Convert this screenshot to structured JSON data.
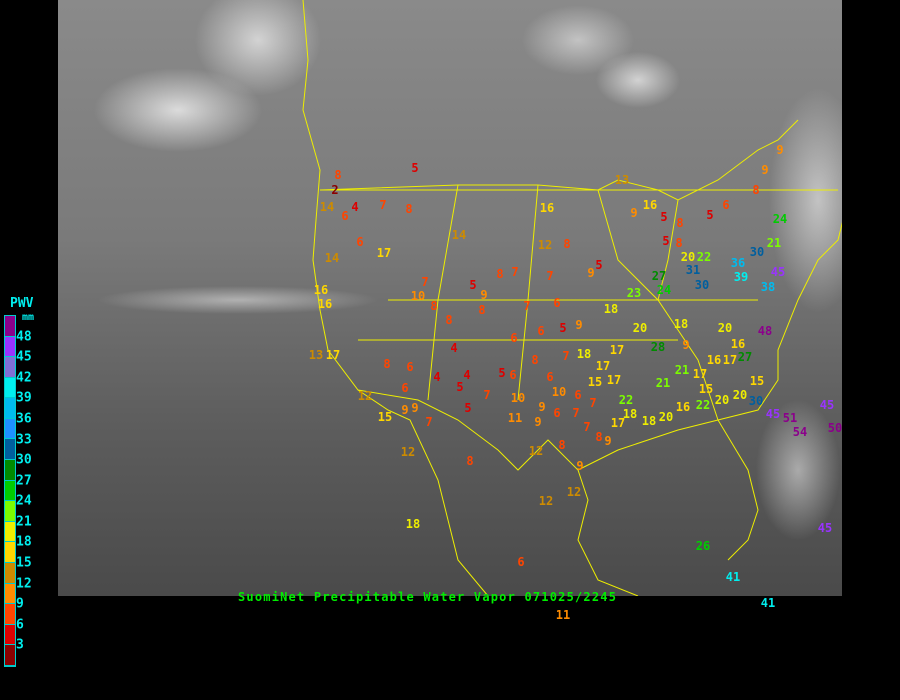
{
  "caption": {
    "title": "SuomiNet Precipitable Water Vapor",
    "timestamp": "071025/2245"
  },
  "legend": {
    "title": "PWV",
    "unit": "mm",
    "labels": [
      "48",
      "45",
      "42",
      "39",
      "36",
      "33",
      "30",
      "27",
      "24",
      "21",
      "18",
      "15",
      "12",
      "9",
      "6",
      "3"
    ],
    "colors_top_to_bottom": [
      "#8b008b",
      "#9933ff",
      "#7f6fd6",
      "#00eeee",
      "#00bbee",
      "#1e90ff",
      "#005f9f",
      "#008b00",
      "#00cc00",
      "#7cfc00",
      "#eeee00",
      "#ffd700",
      "#cd8b00",
      "#ff8c00",
      "#ff4500",
      "#dd0000",
      "#8b0000"
    ]
  },
  "stations": [
    5,
    8,
    2,
    14,
    6,
    4,
    7,
    8,
    6,
    17,
    14,
    14,
    16,
    12,
    8,
    13,
    16,
    16,
    7,
    10,
    8,
    5,
    9,
    8,
    8,
    7,
    7,
    9,
    5,
    7,
    6,
    8,
    4,
    6,
    6,
    5,
    9,
    18,
    9,
    16,
    5,
    8,
    5,
    8,
    5,
    6,
    8,
    9,
    9,
    21,
    30,
    36,
    39,
    45,
    38,
    24,
    22,
    20,
    27,
    24,
    23,
    31,
    30,
    20,
    18,
    20,
    48,
    16,
    27,
    13,
    17,
    8,
    6,
    6,
    4,
    5,
    4,
    5,
    6,
    7,
    5,
    8,
    6,
    7,
    18,
    17,
    15,
    17,
    17,
    28,
    9,
    21,
    17,
    16,
    17,
    15,
    21,
    22,
    18,
    18,
    20,
    16,
    22,
    20,
    20,
    15,
    30,
    45,
    51,
    54,
    45,
    50,
    45,
    12,
    15,
    9,
    9,
    7,
    10,
    9,
    10,
    11,
    9,
    6,
    7,
    7,
    6,
    7,
    8,
    9,
    17,
    12,
    8,
    12,
    8,
    9,
    12,
    12,
    18,
    6,
    26,
    41,
    41,
    11
  ]
}
